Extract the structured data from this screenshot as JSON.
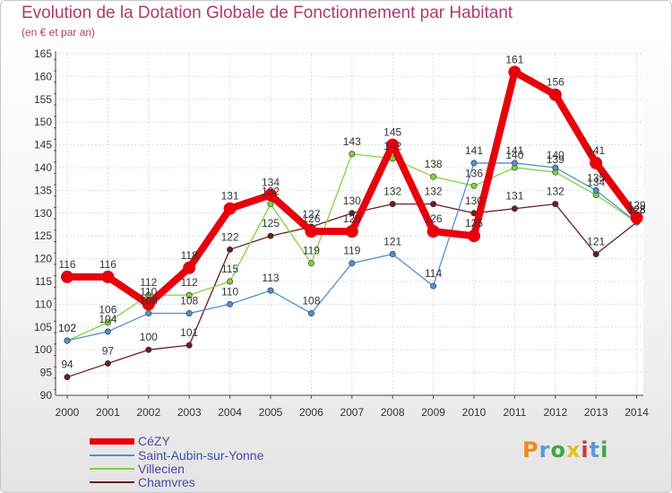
{
  "title": "Evolution de la Dotation Globale de Fonctionnement par Habitant",
  "subtitle": "(en € et par an)",
  "logo": {
    "text": "Proxiti",
    "colors": [
      "#f08a1c",
      "#5b9bd5",
      "#3fa64a",
      "#e0c21e",
      "#d6304a",
      "#5b9bd5",
      "#3fa64a"
    ]
  },
  "chart_data": {
    "type": "line",
    "title": "Evolution de la Dotation Globale de Fonctionnement par Habitant",
    "subtitle": "(en € et par an)",
    "xlabel": "",
    "ylabel": "",
    "ylim": [
      90,
      165
    ],
    "y_ticks": [
      90,
      95,
      100,
      105,
      110,
      115,
      120,
      125,
      130,
      135,
      140,
      145,
      150,
      155,
      160,
      165
    ],
    "categories": [
      "2000",
      "2001",
      "2002",
      "2003",
      "2004",
      "2005",
      "2006",
      "2007",
      "2008",
      "2009",
      "2010",
      "2011",
      "2012",
      "2013",
      "2014"
    ],
    "series": [
      {
        "name": "CéZY",
        "color": "#e8000b",
        "values": [
          116,
          116,
          110,
          118,
          131,
          134,
          126,
          126,
          145,
          126,
          125,
          161,
          156,
          141,
          129
        ]
      },
      {
        "name": "Saint-Aubin-sur-Yonne",
        "color": "#4f90cf",
        "values": [
          102,
          104,
          108,
          108,
          110,
          113,
          108,
          119,
          121,
          114,
          141,
          141,
          140,
          135,
          128
        ]
      },
      {
        "name": "Villecien",
        "color": "#7fd33d",
        "values": [
          102,
          106,
          112,
          112,
          115,
          132,
          119,
          143,
          142,
          138,
          136,
          140,
          139,
          134,
          128
        ]
      },
      {
        "name": "Chamvres",
        "color": "#6b1e1e",
        "values": [
          94,
          97,
          100,
          101,
          122,
          125,
          127,
          130,
          132,
          132,
          130,
          131,
          132,
          121,
          128
        ]
      }
    ]
  }
}
